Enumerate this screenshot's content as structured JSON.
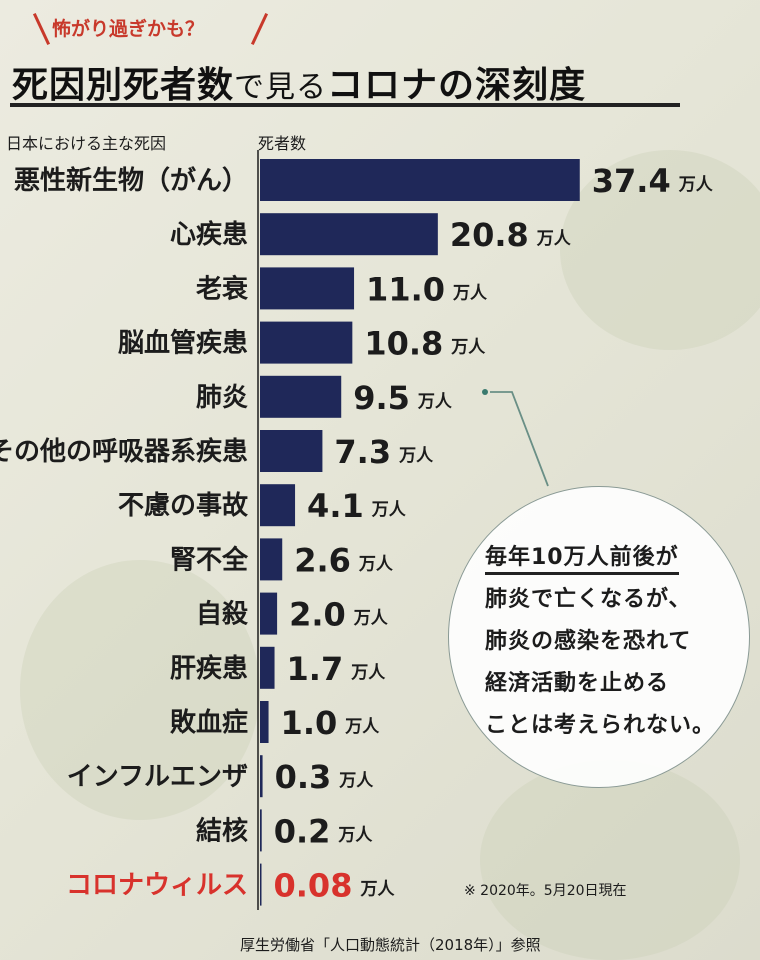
{
  "kicker": "怖がり過ぎかも？",
  "title": {
    "part1": "死因別死者数",
    "part2": "で見る",
    "part3": "コロナの深刻度"
  },
  "chart_data": {
    "type": "bar",
    "orientation": "horizontal",
    "category_header": "日本における主な死因",
    "value_header": "死者数",
    "unit": "万人",
    "categories": [
      "悪性新生物（がん）",
      "心疾患",
      "老衰",
      "脳血管疾患",
      "肺炎",
      "その他の呼吸器系疾患",
      "不慮の事故",
      "腎不全",
      "自殺",
      "肝疾患",
      "敗血症",
      "インフルエンザ",
      "結核",
      "コロナウィルス"
    ],
    "values": [
      37.4,
      20.8,
      11.0,
      10.8,
      9.5,
      7.3,
      4.1,
      2.6,
      2.0,
      1.7,
      1.0,
      0.3,
      0.2,
      0.08
    ],
    "value_labels": [
      "37.4",
      "20.8",
      "11.0",
      "10.8",
      "9.5",
      "7.3",
      "4.1",
      "2.6",
      "2.0",
      "1.7",
      "1.0",
      "0.3",
      "0.2",
      "0.08"
    ],
    "highlight_category": "コロナウィルス",
    "bar_color": "#1f2859",
    "highlight_color": "#d8322c"
  },
  "callout": {
    "lines": [
      "毎年10万人前後が",
      "肺炎で亡くなるが、",
      "肺炎の感染を恐れて",
      "経済活動を止める",
      "ことは考えられない。"
    ]
  },
  "date_note": "※ 2020年。5月20日現在",
  "source": "厚生労働省「人口動態統計（2018年）」参照"
}
